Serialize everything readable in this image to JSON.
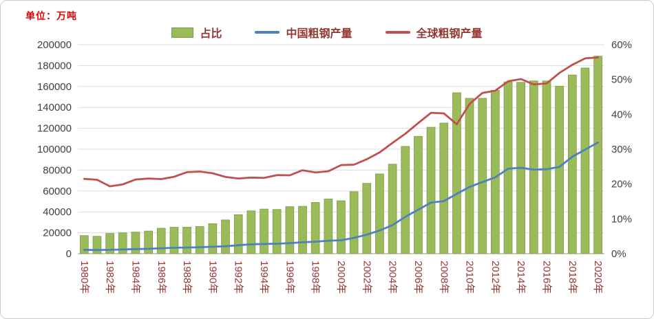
{
  "unit_label": "单位：万吨",
  "chart_data": {
    "type": "combo",
    "legend_position": "top",
    "grid": true,
    "categories": [
      1980,
      1981,
      1982,
      1983,
      1984,
      1985,
      1986,
      1987,
      1988,
      1989,
      1990,
      1991,
      1992,
      1993,
      1994,
      1995,
      1996,
      1997,
      1998,
      1999,
      2000,
      2001,
      2002,
      2003,
      2004,
      2005,
      2006,
      2007,
      2008,
      2009,
      2010,
      2011,
      2012,
      2013,
      2014,
      2015,
      2016,
      2017,
      2018,
      2019,
      2020
    ],
    "x_tick_every": 2,
    "x_tick_labels": [
      "1980年",
      "1982年",
      "1984年",
      "1986年",
      "1988年",
      "1990年",
      "1992年",
      "1994年",
      "1996年",
      "1998年",
      "2000年",
      "2002年",
      "2004年",
      "2006年",
      "2008年",
      "2010年",
      "2012年",
      "2014年",
      "2016年",
      "2018年",
      "2020年"
    ],
    "left_axis": {
      "min": 0,
      "max": 200000,
      "step": 20000,
      "ticks": [
        "0",
        "20000",
        "40000",
        "60000",
        "80000",
        "100000",
        "120000",
        "140000",
        "160000",
        "180000",
        "200000"
      ]
    },
    "right_axis": {
      "min": 0,
      "max": 60,
      "step": 10,
      "ticks": [
        "0%",
        "10%",
        "20%",
        "30%",
        "40%",
        "50%",
        "60%"
      ]
    },
    "series": [
      {
        "name": "占比",
        "type": "bar",
        "axis": "right",
        "unit": "%",
        "color": "#9bbb59",
        "border": "#7e9a4d",
        "values": [
          5.2,
          5.0,
          5.8,
          6.0,
          6.2,
          6.5,
          7.3,
          7.6,
          7.6,
          7.8,
          8.6,
          9.7,
          11.2,
          12.3,
          12.8,
          12.7,
          13.5,
          13.6,
          14.7,
          15.7,
          15.2,
          17.8,
          20.2,
          22.9,
          25.7,
          30.8,
          33.7,
          36.3,
          37.5,
          46.2,
          44.6,
          44.6,
          46.9,
          49.3,
          49.2,
          49.6,
          49.6,
          48.1,
          51.3,
          53.3,
          56.7
        ]
      },
      {
        "name": "中国粗钢产量",
        "type": "line",
        "axis": "left",
        "unit": "万吨",
        "color": "#4f81bd",
        "values": [
          3712,
          3560,
          3716,
          4002,
          4384,
          4679,
          5221,
          5628,
          5943,
          6159,
          6635,
          7100,
          8094,
          8956,
          9261,
          9536,
          10124,
          10894,
          11459,
          12426,
          12850,
          15163,
          18225,
          22234,
          27280,
          35324,
          42102,
          48929,
          50306,
          57218,
          63874,
          68528,
          73104,
          81313,
          82231,
          80383,
          80761,
          83173,
          92800,
          99634,
          106477
        ]
      },
      {
        "name": "全球粗钢产量",
        "type": "line",
        "axis": "left",
        "unit": "万吨",
        "color": "#c0504d",
        "values": [
          71600,
          70700,
          64500,
          66300,
          71000,
          71900,
          71400,
          73600,
          78000,
          78600,
          77000,
          73400,
          72000,
          72800,
          72500,
          75200,
          75000,
          79900,
          77700,
          78900,
          84800,
          85200,
          90400,
          97000,
          106000,
          114800,
          125000,
          134800,
          134300,
          123900,
          143300,
          153800,
          156000,
          165000,
          167100,
          162000,
          162900,
          173000,
          180800,
          186900,
          187800
        ]
      }
    ],
    "text_colors": {
      "x_labels": "#963634",
      "y_labels": "#3f3f3f",
      "unit": "#e60000"
    }
  }
}
